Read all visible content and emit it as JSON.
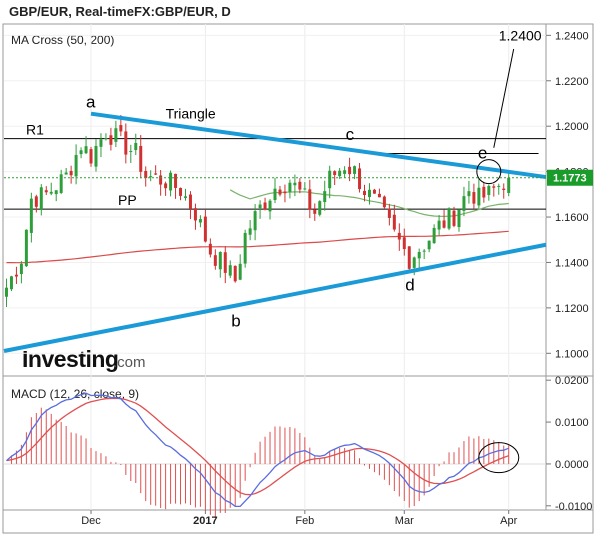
{
  "header": {
    "title": "GBP/EUR, Real-timeFX:GBP/EUR, D"
  },
  "price_panel": {
    "indicator_label": "MA Cross (50, 200)",
    "logo_main": "Investing",
    "logo_suffix": ".com",
    "last_price": "1.1773",
    "last_price_color": "#1a9c2a"
  },
  "macd_panel": {
    "indicator_label": "MACD (12, 26, close, 9)"
  },
  "annotations": {
    "a": "a",
    "b": "b",
    "c": "c",
    "d": "d",
    "e": "e",
    "triangle": "Triangle",
    "r1": "R1",
    "pp": "PP",
    "target": "1.2400"
  },
  "colors": {
    "trendline": "#1a9ad6",
    "up_candle": "#2e9e3a",
    "down_candle": "#d03030",
    "ma_fast": "#7bb36a",
    "ma_slow": "#d94a4a",
    "macd_line": "#5a6de0",
    "signal_line": "#e05050",
    "histogram": "#e05050",
    "current_price_line": "#2e9e3a"
  },
  "chart_data": [
    {
      "type": "candlestick",
      "title": "GBP/EUR, Real-timeFX:GBP/EUR, D",
      "y_ticks": [
        "1.2400",
        "1.2200",
        "1.2000",
        "1.1800",
        "1.1600",
        "1.1400",
        "1.1200",
        "1.1000"
      ],
      "ylim": [
        1.09,
        1.245
      ],
      "x_ticks": [
        "Dec",
        "2017",
        "Feb",
        "Mar",
        "Apr"
      ],
      "last_price": 1.1773,
      "levels": {
        "R1": 1.1945,
        "PP": 1.1635,
        "target": 1.24
      },
      "triangle": {
        "upper": [
          [
            0,
            1.2055
          ],
          [
            108,
            1.1776
          ]
        ],
        "lower": [
          [
            0,
            1.101
          ],
          [
            108,
            1.1478
          ]
        ]
      },
      "wave_labels": [
        {
          "label": "a",
          "bar": 17,
          "value": 1.2055
        },
        {
          "label": "b",
          "bar": 46,
          "value": 1.1205
        },
        {
          "label": "c",
          "bar": 69,
          "value": 1.196
        },
        {
          "label": "d",
          "bar": 81,
          "value": 1.135
        },
        {
          "label": "e",
          "bar": 97,
          "value": 1.1875
        }
      ],
      "candles": [],
      "ma_fast_name": "MA 50",
      "ma_slow_name": "MA 200"
    },
    {
      "type": "line",
      "title": "MACD (12, 26, close, 9)",
      "y_ticks": [
        "0.0200",
        "0.0100",
        "0.0000",
        "-0.0100"
      ],
      "ylim": [
        -0.011,
        0.021
      ],
      "series": [
        {
          "values": []
        },
        {
          "values": []
        }
      ]
    }
  ]
}
